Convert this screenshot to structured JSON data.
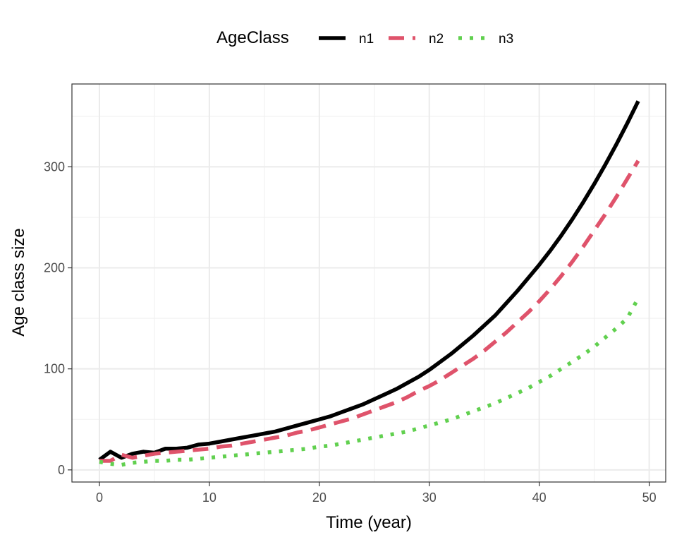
{
  "chart_data": {
    "type": "line",
    "xlabel": "Time (year)",
    "ylabel": "Age class size",
    "legend_title": "AgeClass",
    "legend_position": "top",
    "xlim": [
      -2.5,
      51.5
    ],
    "ylim": [
      -12,
      382
    ],
    "xticks": [
      0,
      10,
      20,
      30,
      40,
      50
    ],
    "yticks": [
      0,
      100,
      200,
      300
    ],
    "grid": true,
    "colors": {
      "n1": "#000000",
      "n2": "#DF536B",
      "n3": "#61D04F"
    },
    "x": [
      0,
      1,
      2,
      3,
      4,
      5,
      6,
      7,
      8,
      9,
      10,
      11,
      12,
      13,
      14,
      15,
      16,
      17,
      18,
      19,
      20,
      21,
      22,
      23,
      24,
      25,
      26,
      27,
      28,
      29,
      30,
      31,
      32,
      33,
      34,
      35,
      36,
      37,
      38,
      39,
      40,
      41,
      42,
      43,
      44,
      45,
      46,
      47,
      48,
      49
    ],
    "series": [
      {
        "name": "n1",
        "style": "solid",
        "values": [
          10,
          18,
          12,
          16,
          18,
          17,
          21,
          21,
          22,
          25,
          26,
          28,
          30,
          32,
          34,
          36,
          38,
          41,
          44,
          47,
          50,
          53,
          57,
          61,
          65,
          70,
          75,
          80,
          86,
          92,
          99,
          107,
          115,
          124,
          133,
          143,
          153,
          165,
          177,
          190,
          203,
          217,
          232,
          248,
          265,
          283,
          302,
          322,
          343,
          365
        ]
      },
      {
        "name": "n2",
        "style": "dashed",
        "values": [
          9,
          9,
          15,
          12,
          14,
          16,
          17,
          18,
          19,
          20,
          21,
          23,
          24,
          26,
          28,
          30,
          32,
          34,
          37,
          39,
          42,
          45,
          48,
          51,
          55,
          59,
          63,
          67,
          72,
          78,
          83,
          89,
          96,
          103,
          110,
          118,
          127,
          136,
          146,
          156,
          167,
          179,
          192,
          206,
          221,
          237,
          253,
          270,
          288,
          306
        ]
      },
      {
        "name": "n3",
        "style": "dotted",
        "values": [
          8,
          6,
          5,
          7,
          8,
          9,
          9,
          10,
          10,
          11,
          12,
          13,
          14,
          15,
          16,
          17,
          18,
          19,
          20,
          21,
          23,
          24,
          26,
          28,
          30,
          32,
          34,
          36,
          38,
          41,
          44,
          47,
          50,
          54,
          58,
          62,
          66,
          71,
          76,
          81,
          87,
          93,
          100,
          107,
          114,
          122,
          131,
          140,
          150,
          170
        ]
      }
    ]
  }
}
